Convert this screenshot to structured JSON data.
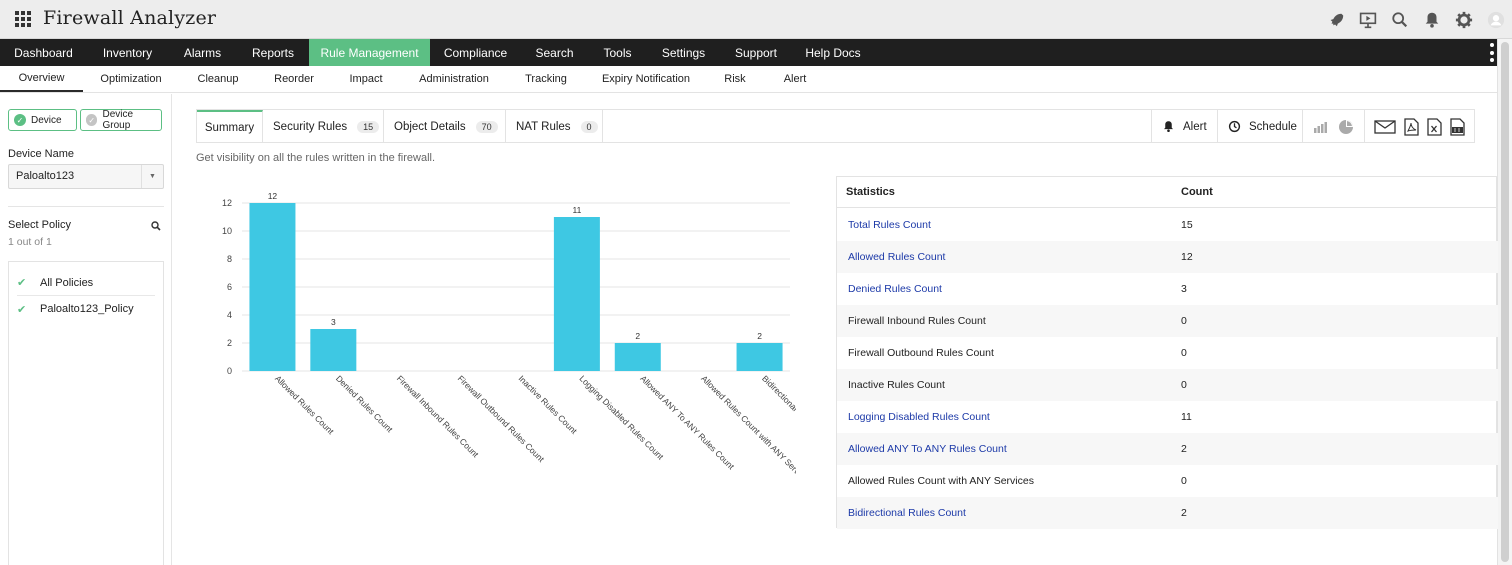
{
  "app": {
    "title": "Firewall Analyzer"
  },
  "top_icons": [
    "rocket-icon",
    "presentation-icon",
    "search-icon",
    "bell-icon",
    "gear-icon",
    "user-avatar-icon"
  ],
  "main_nav": [
    {
      "label": "Dashboard"
    },
    {
      "label": "Inventory"
    },
    {
      "label": "Alarms"
    },
    {
      "label": "Reports"
    },
    {
      "label": "Rule Management",
      "active": true
    },
    {
      "label": "Compliance"
    },
    {
      "label": "Search"
    },
    {
      "label": "Tools"
    },
    {
      "label": "Settings"
    },
    {
      "label": "Support"
    },
    {
      "label": "Help Docs"
    }
  ],
  "sub_nav": [
    {
      "label": "Overview",
      "active": true
    },
    {
      "label": "Optimization"
    },
    {
      "label": "Cleanup"
    },
    {
      "label": "Reorder"
    },
    {
      "label": "Impact"
    },
    {
      "label": "Administration"
    },
    {
      "label": "Tracking"
    },
    {
      "label": "Expiry Notification"
    },
    {
      "label": "Risk"
    },
    {
      "label": "Alert"
    }
  ],
  "left_panel": {
    "device_toggle": {
      "label": "Device",
      "selected": true
    },
    "device_group_toggle": {
      "label": "Device Group",
      "selected": false
    },
    "device_name_label": "Device Name",
    "device_name_value": "Paloalto123",
    "select_policy_label": "Select Policy",
    "policy_count_text": "1 out of 1",
    "policies": [
      {
        "label": "All Policies",
        "checked": true
      },
      {
        "label": "Paloalto123_Policy",
        "checked": true
      }
    ]
  },
  "tabs": [
    {
      "label": "Summary",
      "active": true
    },
    {
      "label": "Security Rules",
      "badge": "15"
    },
    {
      "label": "Object Details",
      "badge": "70"
    },
    {
      "label": "NAT Rules",
      "badge": "0"
    }
  ],
  "toolbar": {
    "alert_label": "Alert",
    "schedule_label": "Schedule",
    "icons": [
      "bar-chart-icon",
      "pie-chart-icon",
      "email-icon",
      "pdf-icon",
      "xls-icon",
      "csv-icon"
    ]
  },
  "description": "Get visibility on all the rules written in the firewall.",
  "colors": {
    "accent": "#5cbf84",
    "bar": "#3ec8e3",
    "link": "#1d3aa8",
    "nav_bg": "#1f1f1f"
  },
  "chart_data": {
    "type": "bar",
    "categories": [
      "Allowed Rules Count",
      "Denied Rules Count",
      "Firewall Inbound Rules Count",
      "Firewall Outbound Rules Count",
      "Inactive Rules Count",
      "Logging Disabled Rules Count",
      "Allowed ANY To ANY Rules Count",
      "Allowed Rules Count with ANY Services",
      "Bidirectional Rule..."
    ],
    "values": [
      12,
      3,
      0,
      0,
      0,
      11,
      2,
      0,
      2
    ],
    "yticks": [
      "0",
      "2",
      "4",
      "6",
      "8",
      "10",
      "12"
    ],
    "ylim": [
      0,
      12
    ],
    "grid": true,
    "data_labels": true
  },
  "stats": {
    "headers": [
      "Statistics",
      "Count"
    ],
    "rows": [
      {
        "name": "Total Rules Count",
        "count": "15",
        "link": true
      },
      {
        "name": "Allowed Rules Count",
        "count": "12",
        "link": true
      },
      {
        "name": "Denied Rules Count",
        "count": "3",
        "link": true
      },
      {
        "name": "Firewall Inbound Rules Count",
        "count": "0",
        "link": false
      },
      {
        "name": "Firewall Outbound Rules Count",
        "count": "0",
        "link": false
      },
      {
        "name": "Inactive Rules Count",
        "count": "0",
        "link": false
      },
      {
        "name": "Logging Disabled Rules Count",
        "count": "11",
        "link": true
      },
      {
        "name": "Allowed ANY To ANY Rules Count",
        "count": "2",
        "link": true
      },
      {
        "name": "Allowed Rules Count with ANY Services",
        "count": "0",
        "link": false
      },
      {
        "name": "Bidirectional Rules Count",
        "count": "2",
        "link": true
      }
    ]
  }
}
